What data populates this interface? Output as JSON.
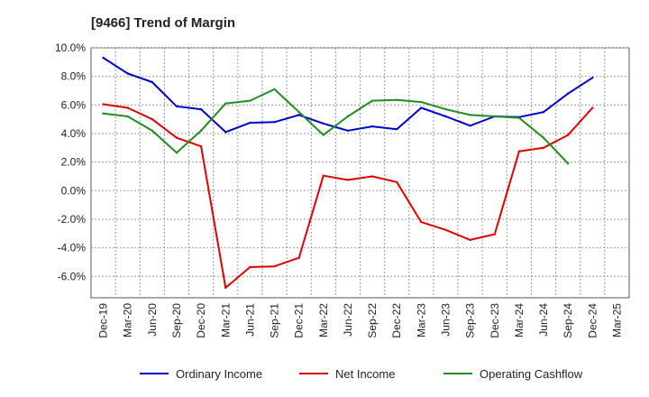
{
  "title": "[9466]  Trend of Margin",
  "chart_data": {
    "type": "line",
    "categories": [
      "Dec-19",
      "Mar-20",
      "Jun-20",
      "Sep-20",
      "Dec-20",
      "Mar-21",
      "Jun-21",
      "Sep-21",
      "Dec-21",
      "Mar-22",
      "Jun-22",
      "Sep-22",
      "Dec-22",
      "Mar-23",
      "Jun-23",
      "Sep-23",
      "Dec-23",
      "Mar-24",
      "Jun-24",
      "Sep-24",
      "Dec-24",
      "Mar-25"
    ],
    "ylim": [
      -7.5,
      10.0
    ],
    "yticks": [
      10.0,
      8.0,
      6.0,
      4.0,
      2.0,
      0.0,
      -2.0,
      -4.0,
      -6.0
    ],
    "ytick_labels": [
      "10.0%",
      "8.0%",
      "6.0%",
      "4.0%",
      "2.0%",
      "0.0%",
      "-2.0%",
      "-4.0%",
      "-6.0%"
    ],
    "grid": true,
    "legend_position": "bottom",
    "series": [
      {
        "name": "Ordinary Income",
        "color": "#0000cc",
        "values": [
          9.3,
          8.2,
          7.6,
          5.9,
          5.7,
          4.1,
          4.75,
          4.8,
          5.3,
          4.7,
          4.2,
          4.5,
          4.3,
          5.8,
          5.2,
          4.55,
          5.2,
          5.15,
          5.5,
          6.8,
          7.9,
          null
        ]
      },
      {
        "name": "Net Income",
        "color": "#dd0000",
        "values": [
          6.05,
          5.8,
          5.0,
          3.7,
          3.1,
          -6.8,
          -5.35,
          -5.3,
          -4.7,
          1.05,
          0.75,
          1.0,
          0.6,
          -2.2,
          -2.75,
          -3.45,
          -3.05,
          2.75,
          3.0,
          3.9,
          5.8,
          null
        ]
      },
      {
        "name": "Operating Cashflow",
        "color": "#228b22",
        "values": [
          5.4,
          5.2,
          4.2,
          2.65,
          4.2,
          6.1,
          6.3,
          7.1,
          5.5,
          3.9,
          5.2,
          6.3,
          6.35,
          6.2,
          5.7,
          5.3,
          5.2,
          5.1,
          3.7,
          1.9,
          null,
          null
        ]
      }
    ]
  }
}
